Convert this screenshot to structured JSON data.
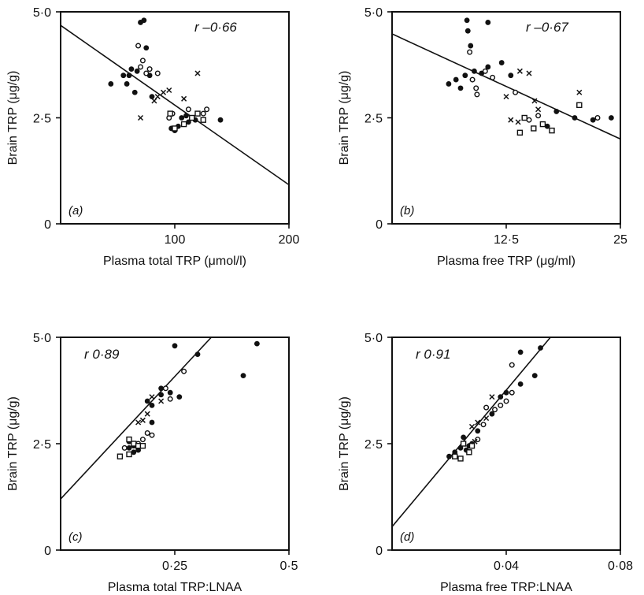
{
  "chart_data": [
    {
      "type": "scatter",
      "panel_label": "(a)",
      "r_label": "r –0·66",
      "xlabel": "Plasma total TRP (μmol/l)",
      "ylabel": "Brain TRP (μg/g)",
      "xlim": [
        0,
        200
      ],
      "ylim": [
        0,
        5
      ],
      "xticks": [
        {
          "v": 100,
          "label": "100"
        },
        {
          "v": 200,
          "label": "200"
        }
      ],
      "yticks": [
        {
          "v": 0,
          "label": "0"
        },
        {
          "v": 2.5,
          "label": "2·5"
        },
        {
          "v": 5,
          "label": "5·0"
        }
      ],
      "fit_line": [
        [
          0,
          4.68
        ],
        [
          200,
          0.92
        ]
      ],
      "series": [
        {
          "marker": "filled-circle",
          "points": [
            [
              44,
              3.3
            ],
            [
              55,
              3.5
            ],
            [
              58,
              3.3
            ],
            [
              60,
              3.5
            ],
            [
              62,
              3.65
            ],
            [
              65,
              3.1
            ],
            [
              67,
              3.6
            ],
            [
              70,
              4.75
            ],
            [
              73,
              4.8
            ],
            [
              75,
              4.15
            ],
            [
              78,
              3.5
            ],
            [
              80,
              3.0
            ],
            [
              97,
              2.25
            ],
            [
              100,
              2.2
            ],
            [
              103,
              2.3
            ],
            [
              106,
              2.5
            ],
            [
              110,
              2.55
            ],
            [
              112,
              2.4
            ],
            [
              118,
              2.45
            ],
            [
              140,
              2.45
            ]
          ]
        },
        {
          "marker": "open-circle",
          "points": [
            [
              68,
              4.2
            ],
            [
              70,
              3.7
            ],
            [
              72,
              3.85
            ],
            [
              75,
              3.55
            ],
            [
              78,
              3.65
            ],
            [
              85,
              3.55
            ],
            [
              95,
              2.5
            ],
            [
              98,
              2.6
            ],
            [
              112,
              2.7
            ],
            [
              125,
              2.6
            ],
            [
              128,
              2.7
            ]
          ]
        },
        {
          "marker": "open-square",
          "points": [
            [
              96,
              2.6
            ],
            [
              100,
              2.25
            ],
            [
              108,
              2.35
            ],
            [
              115,
              2.5
            ],
            [
              120,
              2.6
            ],
            [
              125,
              2.45
            ]
          ]
        },
        {
          "marker": "cross",
          "points": [
            [
              70,
              2.5
            ],
            [
              82,
              2.9
            ],
            [
              85,
              3.0
            ],
            [
              90,
              3.1
            ],
            [
              95,
              3.15
            ],
            [
              108,
              2.95
            ],
            [
              120,
              3.55
            ]
          ]
        }
      ]
    },
    {
      "type": "scatter",
      "panel_label": "(b)",
      "r_label": "r –0·67",
      "xlabel": "Plasma free TRP (μg/ml)",
      "ylabel": "Brain TRP (μg/g)",
      "xlim": [
        0,
        25
      ],
      "ylim": [
        0,
        5
      ],
      "xticks": [
        {
          "v": 12.5,
          "label": "12·5"
        },
        {
          "v": 25,
          "label": "25"
        }
      ],
      "yticks": [
        {
          "v": 0,
          "label": "0"
        },
        {
          "v": 2.5,
          "label": "2·5"
        },
        {
          "v": 5,
          "label": "5·0"
        }
      ],
      "fit_line": [
        [
          0,
          4.48
        ],
        [
          25,
          2.0
        ]
      ],
      "series": [
        {
          "marker": "filled-circle",
          "points": [
            [
              6.2,
              3.3
            ],
            [
              7.0,
              3.4
            ],
            [
              7.5,
              3.2
            ],
            [
              8.0,
              3.5
            ],
            [
              8.2,
              4.8
            ],
            [
              8.3,
              4.55
            ],
            [
              8.6,
              4.2
            ],
            [
              9.0,
              3.6
            ],
            [
              9.8,
              3.55
            ],
            [
              10.5,
              3.7
            ],
            [
              12.0,
              3.8
            ],
            [
              13.0,
              3.5
            ],
            [
              17.0,
              2.3
            ],
            [
              18.0,
              2.65
            ],
            [
              20.0,
              2.5
            ],
            [
              22.0,
              2.45
            ],
            [
              24.0,
              2.5
            ],
            [
              10.5,
              4.75
            ]
          ]
        },
        {
          "marker": "open-circle",
          "points": [
            [
              8.5,
              4.05
            ],
            [
              8.8,
              3.4
            ],
            [
              9.2,
              3.2
            ],
            [
              10.2,
              3.6
            ],
            [
              11.0,
              3.45
            ],
            [
              13.5,
              3.1
            ],
            [
              15.0,
              2.45
            ],
            [
              16.0,
              2.55
            ],
            [
              22.5,
              2.5
            ],
            [
              9.3,
              3.05
            ]
          ]
        },
        {
          "marker": "open-square",
          "points": [
            [
              14.0,
              2.15
            ],
            [
              14.5,
              2.5
            ],
            [
              15.5,
              2.25
            ],
            [
              16.5,
              2.35
            ],
            [
              17.5,
              2.2
            ],
            [
              20.5,
              2.8
            ]
          ]
        },
        {
          "marker": "cross",
          "points": [
            [
              12.5,
              3.0
            ],
            [
              14.0,
              3.6
            ],
            [
              15.0,
              3.55
            ],
            [
              16.0,
              2.7
            ],
            [
              13.0,
              2.45
            ],
            [
              13.8,
              2.4
            ],
            [
              20.5,
              3.1
            ],
            [
              15.6,
              2.9
            ]
          ]
        }
      ]
    },
    {
      "type": "scatter",
      "panel_label": "(c)",
      "r_label": "r 0·89",
      "xlabel": "Plasma total TRP:LNAA",
      "ylabel": "Brain TRP (μg/g)",
      "xlim": [
        0,
        0.5
      ],
      "ylim": [
        0,
        5
      ],
      "xticks": [
        {
          "v": 0.25,
          "label": "0·25"
        },
        {
          "v": 0.5,
          "label": "0·5"
        }
      ],
      "yticks": [
        {
          "v": 0,
          "label": "0"
        },
        {
          "v": 2.5,
          "label": "2·5"
        },
        {
          "v": 5,
          "label": "5·0"
        }
      ],
      "fit_line": [
        [
          0,
          1.2
        ],
        [
          0.33,
          5.0
        ]
      ],
      "series": [
        {
          "marker": "filled-circle",
          "points": [
            [
              0.25,
              4.8
            ],
            [
              0.3,
              4.6
            ],
            [
              0.4,
              4.1
            ],
            [
              0.43,
              4.85
            ],
            [
              0.26,
              3.6
            ],
            [
              0.24,
              3.7
            ],
            [
              0.22,
              3.8
            ],
            [
              0.2,
              3.4
            ],
            [
              0.19,
              3.5
            ],
            [
              0.22,
              3.65
            ],
            [
              0.2,
              3.0
            ],
            [
              0.15,
              2.55
            ],
            [
              0.16,
              2.45
            ],
            [
              0.17,
              2.35
            ],
            [
              0.15,
              2.4
            ],
            [
              0.16,
              2.3
            ]
          ]
        },
        {
          "marker": "open-circle",
          "points": [
            [
              0.27,
              4.2
            ],
            [
              0.23,
              3.8
            ],
            [
              0.24,
              3.55
            ],
            [
              0.18,
              2.6
            ],
            [
              0.19,
              2.75
            ],
            [
              0.17,
              2.5
            ],
            [
              0.2,
              2.7
            ],
            [
              0.14,
              2.4
            ]
          ]
        },
        {
          "marker": "open-square",
          "points": [
            [
              0.13,
              2.2
            ],
            [
              0.15,
              2.25
            ],
            [
              0.16,
              2.5
            ],
            [
              0.15,
              2.6
            ],
            [
              0.17,
              2.45
            ],
            [
              0.18,
              2.45
            ]
          ]
        },
        {
          "marker": "cross",
          "points": [
            [
              0.17,
              3.0
            ],
            [
              0.19,
              3.2
            ],
            [
              0.2,
              3.6
            ],
            [
              0.22,
              3.5
            ],
            [
              0.18,
              3.05
            ]
          ]
        }
      ]
    },
    {
      "type": "scatter",
      "panel_label": "(d)",
      "r_label": "r 0·91",
      "xlabel": "Plasma free TRP:LNAA",
      "ylabel": "Brain TRP (μg/g)",
      "xlim": [
        0,
        0.08
      ],
      "ylim": [
        0,
        5
      ],
      "xticks": [
        {
          "v": 0.04,
          "label": "0·04"
        },
        {
          "v": 0.08,
          "label": "0·08"
        }
      ],
      "yticks": [
        {
          "v": 0,
          "label": "0"
        },
        {
          "v": 2.5,
          "label": "2·5"
        },
        {
          "v": 5,
          "label": "5·0"
        }
      ],
      "fit_line": [
        [
          0,
          0.55
        ],
        [
          0.0555,
          5.0
        ]
      ],
      "series": [
        {
          "marker": "filled-circle",
          "points": [
            [
              0.045,
              4.65
            ],
            [
              0.052,
              4.75
            ],
            [
              0.05,
              4.1
            ],
            [
              0.045,
              3.9
            ],
            [
              0.04,
              3.7
            ],
            [
              0.038,
              3.6
            ],
            [
              0.035,
              3.2
            ],
            [
              0.03,
              2.8
            ],
            [
              0.025,
              2.65
            ],
            [
              0.027,
              2.45
            ],
            [
              0.024,
              2.4
            ],
            [
              0.026,
              2.35
            ],
            [
              0.028,
              2.5
            ],
            [
              0.02,
              2.2
            ],
            [
              0.022,
              2.3
            ]
          ]
        },
        {
          "marker": "open-circle",
          "points": [
            [
              0.042,
              4.35
            ],
            [
              0.036,
              3.3
            ],
            [
              0.038,
              3.4
            ],
            [
              0.04,
              3.5
            ],
            [
              0.033,
              3.35
            ],
            [
              0.03,
              2.6
            ],
            [
              0.032,
              2.95
            ],
            [
              0.042,
              3.7
            ]
          ]
        },
        {
          "marker": "open-square",
          "points": [
            [
              0.022,
              2.2
            ],
            [
              0.025,
              2.5
            ],
            [
              0.027,
              2.3
            ],
            [
              0.028,
              2.45
            ],
            [
              0.024,
              2.15
            ]
          ]
        },
        {
          "marker": "cross",
          "points": [
            [
              0.028,
              2.9
            ],
            [
              0.03,
              3.0
            ],
            [
              0.033,
              3.1
            ],
            [
              0.035,
              3.6
            ],
            [
              0.029,
              2.55
            ]
          ]
        }
      ]
    }
  ]
}
